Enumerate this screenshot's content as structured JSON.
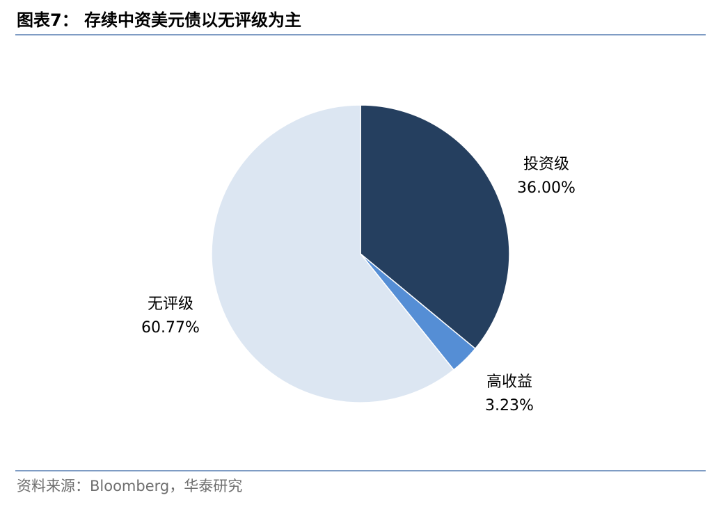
{
  "chart_data": {
    "type": "pie",
    "title": "图表7：  存续中资美元债以无评级为主",
    "source": "资料来源：Bloomberg，华泰研究",
    "categories": [
      "投资级",
      "高收益",
      "无评级"
    ],
    "values": [
      36.0,
      3.23,
      60.77
    ],
    "value_labels": [
      "36.00%",
      "3.23%",
      "60.77%"
    ],
    "colors": [
      "#253f5f",
      "#558ed5",
      "#dce6f2"
    ]
  }
}
